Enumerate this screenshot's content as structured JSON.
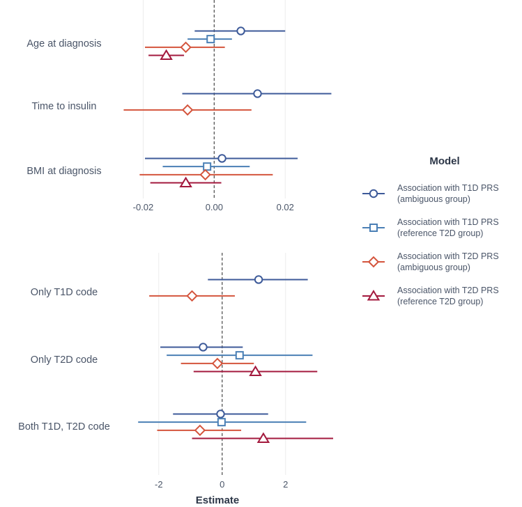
{
  "chart_data": [
    {
      "type": "forest",
      "panel": "top",
      "rows": [
        "Age at diagnosis",
        "Time to insulin",
        "BMI at diagnosis"
      ],
      "xlim": [
        -0.025,
        0.0335
      ],
      "xticks": [
        -0.02,
        0.0,
        0.02
      ],
      "xtick_labels": [
        "-0.02",
        "0.00",
        "0.02"
      ],
      "reference_line": 0,
      "series": [
        {
          "name": "t1d_ambiguous",
          "points": [
            {
              "row": "Age at diagnosis",
              "est": 0.0075,
              "lo": -0.0055,
              "hi": 0.02
            },
            {
              "row": "Time to insulin",
              "est": 0.0122,
              "lo": -0.009,
              "hi": 0.033
            },
            {
              "row": "BMI at diagnosis",
              "est": 0.0022,
              "lo": -0.0195,
              "hi": 0.0235
            }
          ]
        },
        {
          "name": "t1d_reference",
          "points": [
            {
              "row": "Age at diagnosis",
              "est": -0.001,
              "lo": -0.0075,
              "hi": 0.005
            },
            {
              "row": "BMI at diagnosis",
              "est": -0.002,
              "lo": -0.0145,
              "hi": 0.01
            }
          ]
        },
        {
          "name": "t2d_ambiguous",
          "points": [
            {
              "row": "Age at diagnosis",
              "est": -0.008,
              "lo": -0.0195,
              "hi": 0.003
            },
            {
              "row": "Time to insulin",
              "est": -0.0075,
              "lo": -0.0255,
              "hi": 0.0105
            },
            {
              "row": "BMI at diagnosis",
              "est": -0.0025,
              "lo": -0.021,
              "hi": 0.0165
            }
          ]
        },
        {
          "name": "t2d_reference",
          "points": [
            {
              "row": "Age at diagnosis",
              "est": -0.0135,
              "lo": -0.0185,
              "hi": -0.0085
            },
            {
              "row": "BMI at diagnosis",
              "est": -0.008,
              "lo": -0.018,
              "hi": 0.002
            }
          ]
        }
      ]
    },
    {
      "type": "forest",
      "panel": "bottom",
      "rows": [
        "Only T1D code",
        "Only T2D code",
        "Both T1D, T2D code"
      ],
      "xlim": [
        -3.05,
        3.5
      ],
      "xticks": [
        -2,
        0,
        2
      ],
      "xtick_labels": [
        "-2",
        "0",
        "2"
      ],
      "xlabel": "Estimate",
      "reference_line": 0,
      "series": [
        {
          "name": "t1d_ambiguous",
          "points": [
            {
              "row": "Only T1D code",
              "est": 1.15,
              "lo": -0.45,
              "hi": 2.7
            },
            {
              "row": "Only T2D code",
              "est": -0.6,
              "lo": -1.95,
              "hi": 0.65
            },
            {
              "row": "Both T1D, T2D code",
              "est": -0.05,
              "lo": -1.55,
              "hi": 1.45
            }
          ]
        },
        {
          "name": "t1d_reference",
          "points": [
            {
              "row": "Only T2D code",
              "est": 0.55,
              "lo": -1.75,
              "hi": 2.85
            },
            {
              "row": "Both T1D, T2D code",
              "est": -0.02,
              "lo": -2.65,
              "hi": 2.65
            }
          ]
        },
        {
          "name": "t2d_ambiguous",
          "points": [
            {
              "row": "Only T1D code",
              "est": -0.95,
              "lo": -2.3,
              "hi": 0.4
            },
            {
              "row": "Only T2D code",
              "est": -0.15,
              "lo": -1.3,
              "hi": 1.0
            },
            {
              "row": "Both T1D, T2D code",
              "est": -0.7,
              "lo": -2.05,
              "hi": 0.6
            }
          ]
        },
        {
          "name": "t2d_reference",
          "points": [
            {
              "row": "Only T2D code",
              "est": 1.05,
              "lo": -0.9,
              "hi": 3.0
            },
            {
              "row": "Both T1D, T2D code",
              "est": 1.3,
              "lo": -0.95,
              "hi": 3.5
            }
          ]
        }
      ]
    }
  ],
  "legend": {
    "title": "Model",
    "items": [
      {
        "key": "t1d_ambiguous",
        "line1": "Association with T1D PRS",
        "line2": "(ambiguous group)",
        "color": "#3d5a99",
        "shape": "circle"
      },
      {
        "key": "t1d_reference",
        "line1": "Association with T1D PRS",
        "line2": "(reference T2D group)",
        "color": "#4a7fb5",
        "shape": "square"
      },
      {
        "key": "t2d_ambiguous",
        "line1": "Association with T2D PRS",
        "line2": "(ambiguous group)",
        "color": "#d4543c",
        "shape": "diamond"
      },
      {
        "key": "t2d_reference",
        "line1": "Association with T2D PRS",
        "line2": "(reference T2D group)",
        "color": "#a3193d",
        "shape": "triangle"
      }
    ]
  }
}
